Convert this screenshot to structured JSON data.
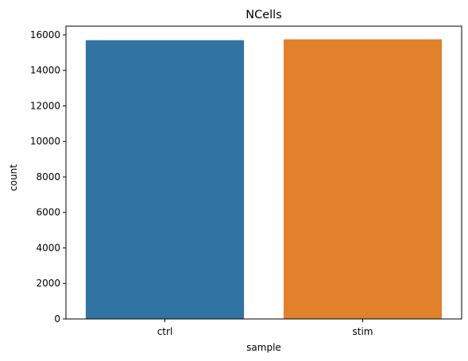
{
  "chart_data": {
    "type": "bar",
    "title": "NCells",
    "xlabel": "sample",
    "ylabel": "count",
    "categories": [
      "ctrl",
      "stim"
    ],
    "values": [
      15700,
      15750
    ],
    "colors": [
      "#3274a1",
      "#e1812c"
    ],
    "ylim": [
      0,
      16490
    ],
    "yticks": [
      0,
      2000,
      4000,
      6000,
      8000,
      10000,
      12000,
      14000,
      16000
    ],
    "grid": false,
    "legend": "none"
  }
}
